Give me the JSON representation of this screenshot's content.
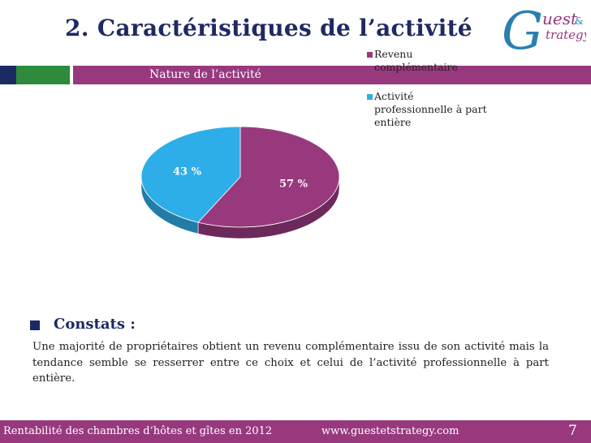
{
  "slide": {
    "title": "2. Caractéristiques de l’activité",
    "logo_text_line1": "uest",
    "logo_text_line2": "trategy",
    "logo_letter": "G",
    "logo_amp": "&"
  },
  "chart_data": {
    "type": "pie",
    "title": "Nature de l’activité",
    "slices": [
      {
        "label": "Revenu complémentaire",
        "value": 57,
        "display": "57 %",
        "color": "#98397e"
      },
      {
        "label": "Activité professionnelle à part entière",
        "value": 43,
        "display": "43 %",
        "color": "#2eaee8"
      }
    ],
    "legend_position": "right",
    "legend": [
      {
        "line1": "Revenu",
        "line2": "complémentaire",
        "line3": ""
      },
      {
        "line1": "Activité",
        "line2": "professionnelle à part",
        "line3": "entière"
      }
    ]
  },
  "constats": {
    "heading": "Constats :",
    "text": "Une majorité de propriétaires obtient un revenu complémentaire issu de son activité mais la tendance semble se resserrer entre ce choix et celui de l’activité professionnelle à part entière."
  },
  "footer": {
    "left": "Rentabilité des chambres d’hôtes et gîtes en 2012",
    "center": "www.guestetstrategy.com",
    "page": "7"
  }
}
